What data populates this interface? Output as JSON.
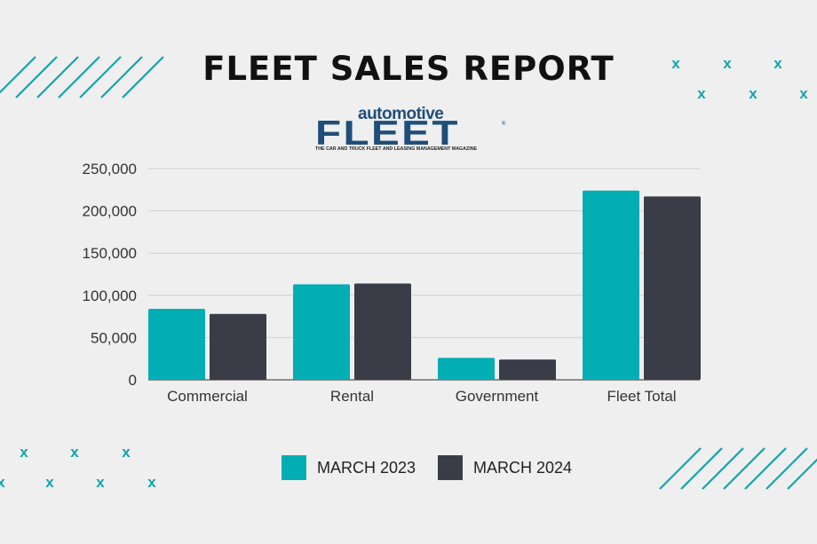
{
  "header": {
    "title": "FLEET SALES REPORT",
    "logo_top": "automotive",
    "logo_main": "FLEET",
    "logo_registered": "®",
    "logo_tagline": "THE CAR AND TRUCK FLEET AND LEASING MANAGEMENT MAGAZINE"
  },
  "decor": {
    "mark": "x",
    "mark_color": "#10a5ab"
  },
  "chart_data": {
    "type": "bar",
    "title": "FLEET SALES REPORT",
    "categories": [
      "Commercial",
      "Rental",
      "Government",
      "Fleet Total"
    ],
    "series": [
      {
        "name": "MARCH 2023",
        "color": "#03adb4",
        "values": [
          84000,
          113000,
          26000,
          224000
        ]
      },
      {
        "name": "MARCH 2024",
        "color": "#3a3d47",
        "values": [
          78000,
          114000,
          24000,
          217000
        ]
      }
    ],
    "ylim": [
      0,
      250000
    ],
    "yticks": [
      0,
      50000,
      100000,
      150000,
      200000,
      250000
    ],
    "ytick_labels": [
      "0",
      "50,000",
      "100,000",
      "150,000",
      "200,000",
      "250,000"
    ],
    "xlabel": "",
    "ylabel": "",
    "grid": true,
    "legend_position": "bottom"
  }
}
